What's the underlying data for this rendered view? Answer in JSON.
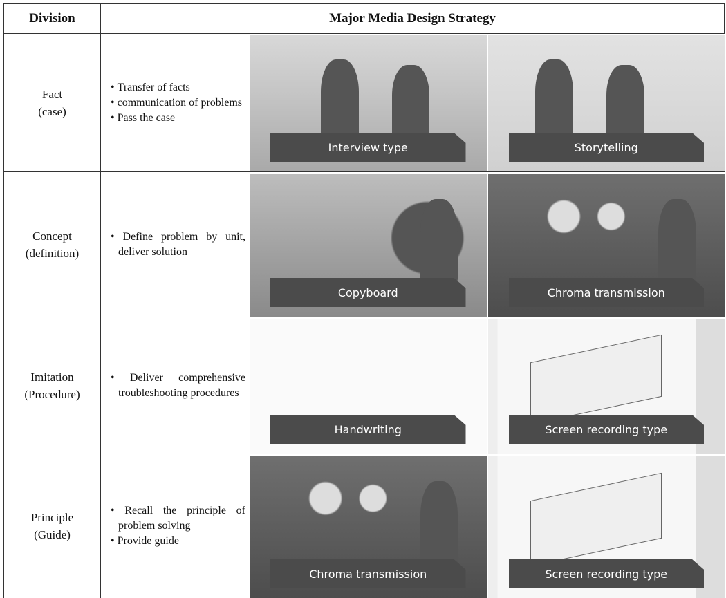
{
  "header": {
    "division": "Division",
    "strategy": "Major Media Design Strategy"
  },
  "rows": [
    {
      "division": [
        "Fact",
        "(case)"
      ],
      "bullets": [
        "Transfer of facts",
        "communication of problems",
        "Pass the case"
      ],
      "media": [
        "Interview type",
        "Storytelling"
      ]
    },
    {
      "division": [
        "Concept",
        "(definition)"
      ],
      "bullets": [
        "Define problem by unit, deliver solution"
      ],
      "media": [
        "Copyboard",
        "Chroma transmission"
      ]
    },
    {
      "division": [
        "Imitation",
        "(Procedure)"
      ],
      "bullets": [
        "Deliver comprehensive troubleshooting procedures"
      ],
      "media": [
        "Handwriting",
        "Screen recording type"
      ]
    },
    {
      "division": [
        "Principle",
        "(Guide)"
      ],
      "bullets": [
        "Recall the principle of problem solving",
        "Provide guide"
      ],
      "media": [
        "Chroma transmission",
        "Screen recording type"
      ]
    }
  ]
}
